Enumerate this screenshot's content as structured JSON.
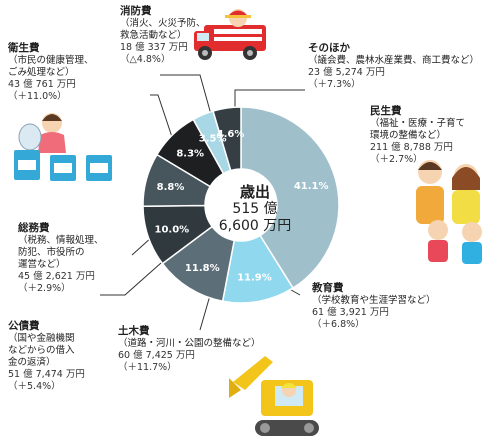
{
  "chart_data": {
    "type": "pie",
    "center_title": "歳出",
    "center_value": "515 億\n6,600 万円",
    "slices": [
      {
        "name": "民生費",
        "pct": 41.1,
        "pct_label": "41.1%",
        "desc": "（福祉・医療・子育て\n環境の整備など）",
        "amount": "211 億 8,788 万円",
        "change": "（＋2.7%）",
        "color": "#9fbfcb"
      },
      {
        "name": "教育費",
        "pct": 11.9,
        "pct_label": "11.9%",
        "desc": "（学校教育や生涯学習など）",
        "amount": "61 億 3,921 万円",
        "change": "（＋6.8%）",
        "color": "#8fd8ee"
      },
      {
        "name": "土木費",
        "pct": 11.8,
        "pct_label": "11.8%",
        "desc": "（道路・河川・公園の整備など）",
        "amount": "60 億 7,425 万円",
        "change": "（＋11.7%）",
        "color": "#5c6f78"
      },
      {
        "name": "公債費",
        "pct": 10.0,
        "pct_label": "10.0%",
        "desc": "（国や金融機関\nなどからの借入\n金の返済）",
        "amount": "51 億 7,474 万円",
        "change": "（＋5.4%）",
        "color": "#2f393e"
      },
      {
        "name": "総務費",
        "pct": 8.8,
        "pct_label": "8.8%",
        "desc": "（税務、情報処理、\n防犯、市役所の\n運営など）",
        "amount": "45 億 2,621 万円",
        "change": "（＋2.9%）",
        "color": "#47555d"
      },
      {
        "name": "衛生費",
        "pct": 8.3,
        "pct_label": "8.3%",
        "desc": "（市民の健康管理、\nごみ処理など）",
        "amount": "43 億 761 万円",
        "change": "（＋11.0%）",
        "color": "#1d1f20"
      },
      {
        "name": "消防費",
        "pct": 3.5,
        "pct_label": "3.5%",
        "desc": "（消火、火災予防、\n救急活動など）",
        "amount": "18 億 337 万円",
        "change": "（△4.8%）",
        "color": "#a8d8e5"
      },
      {
        "name": "そのほか",
        "pct": 4.6,
        "pct_label": "4.6%",
        "desc": "（議会費、農林水産業費、商工費など）",
        "amount": "23 億 5,274 万円",
        "change": "（＋7.3%）",
        "color": "#343e43"
      }
    ]
  }
}
